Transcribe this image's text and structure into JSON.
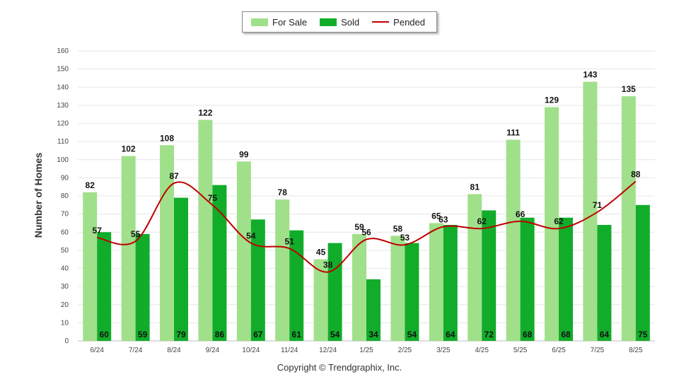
{
  "chart_data": {
    "type": "bar",
    "categories": [
      "6/24",
      "7/24",
      "8/24",
      "9/24",
      "10/24",
      "11/24",
      "12/24",
      "1/25",
      "2/25",
      "3/25",
      "4/25",
      "5/25",
      "6/25",
      "7/25",
      "8/25"
    ],
    "series": [
      {
        "name": "For Sale",
        "kind": "bar",
        "color": "#a0e08a",
        "values": [
          82,
          102,
          108,
          122,
          99,
          78,
          45,
          59,
          58,
          65,
          81,
          111,
          129,
          143,
          135
        ]
      },
      {
        "name": "Sold",
        "kind": "bar",
        "color": "#11ad2a",
        "values": [
          60,
          59,
          79,
          86,
          67,
          61,
          54,
          34,
          54,
          64,
          72,
          68,
          68,
          64,
          75
        ]
      },
      {
        "name": "Pended",
        "kind": "line",
        "color": "#c00000",
        "values": [
          57,
          55,
          87,
          75,
          54,
          51,
          38,
          56,
          53,
          63,
          62,
          66,
          62,
          71,
          88
        ]
      }
    ],
    "ylabel": "Number of Homes",
    "ylim": [
      0,
      160
    ],
    "yticks": [
      0,
      10,
      20,
      30,
      40,
      50,
      60,
      70,
      80,
      90,
      100,
      110,
      120,
      130,
      140,
      150,
      160
    ],
    "grid": true,
    "legend_position": "top-center"
  },
  "legend": {
    "for_sale": "For Sale",
    "sold": "Sold",
    "pended": "Pended"
  },
  "footer": {
    "copyright": "Copyright © Trendgraphix, Inc."
  }
}
